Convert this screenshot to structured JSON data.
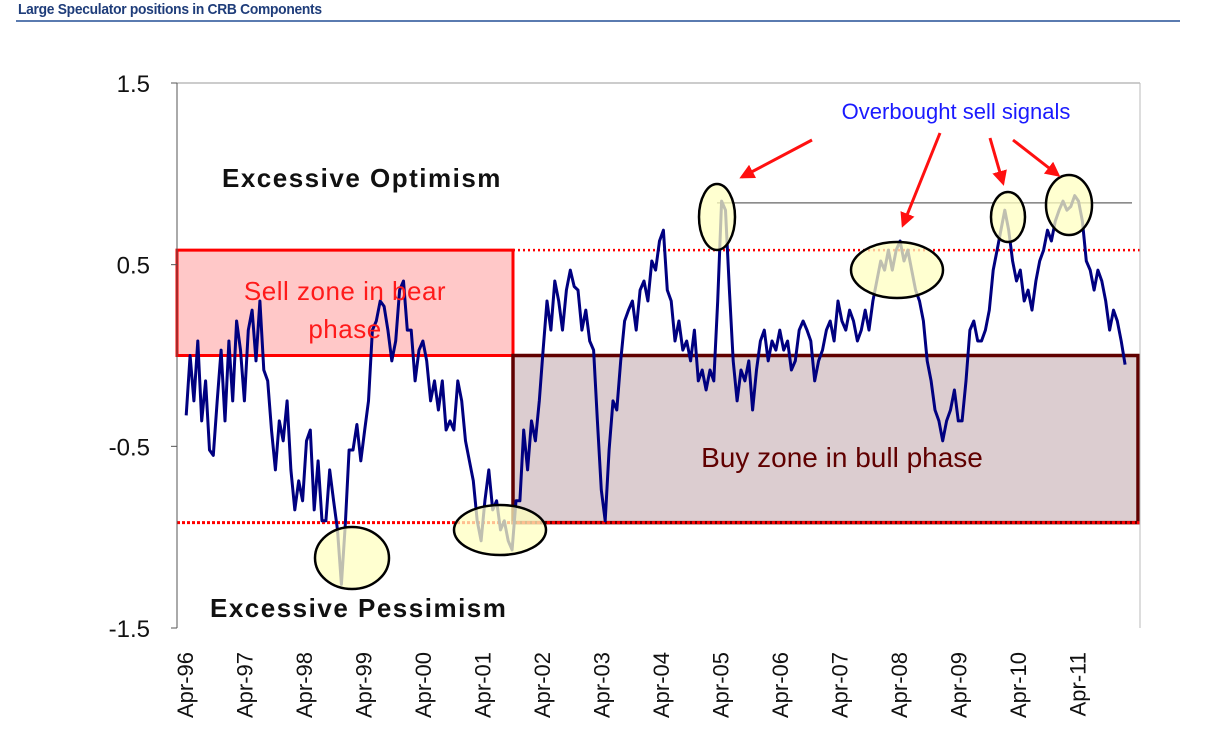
{
  "header": {
    "title": "Large Speculator positions in CRB Components"
  },
  "colors": {
    "line": "#000080",
    "sell_zone": "#ff0000",
    "sell_fill": "#ffc8c8",
    "buy_zone": "#600000",
    "buy_fill": "#dccdd0",
    "highlight": "#ffffc0",
    "annotation": "#1a1aff"
  },
  "chart_data": {
    "type": "line",
    "title": "Large Speculator positions in CRB Components",
    "xlabel": "",
    "ylabel": "",
    "ylim": [
      -1.5,
      1.5
    ],
    "yticks": [
      "1.5",
      "0.5",
      "-0.5",
      "-1.5"
    ],
    "ytick_values": [
      1.5,
      0.5,
      -0.5,
      -1.5
    ],
    "xticks": [
      "Apr-96",
      "Apr-97",
      "Apr-98",
      "Apr-99",
      "Apr-00",
      "Apr-01",
      "Apr-02",
      "Apr-03",
      "Apr-04",
      "Apr-05",
      "Apr-06",
      "Apr-07",
      "Apr-08",
      "Apr-09",
      "Apr-10",
      "Apr-11"
    ],
    "xtick_values": [
      1996.25,
      1997.25,
      1998.25,
      1999.25,
      2000.25,
      2001.25,
      2002.25,
      2003.25,
      2004.25,
      2005.25,
      2006.25,
      2007.25,
      2008.25,
      2009.25,
      2010.25,
      2011.25
    ],
    "series": [
      {
        "name": "Large speculator positions",
        "x_start": 1996.27,
        "x_end": 2012.05,
        "values": [
          -0.33,
          0.0,
          -0.25,
          0.08,
          -0.36,
          -0.14,
          -0.52,
          -0.55,
          -0.25,
          0.03,
          -0.36,
          0.08,
          -0.25,
          0.19,
          0.03,
          -0.25,
          0.14,
          0.25,
          -0.03,
          0.3,
          -0.08,
          -0.14,
          -0.41,
          -0.63,
          -0.36,
          -0.47,
          -0.25,
          -0.63,
          -0.85,
          -0.69,
          -0.8,
          -0.47,
          -0.41,
          -0.85,
          -0.58,
          -0.91,
          -0.91,
          -0.63,
          -0.8,
          -0.96,
          -1.26,
          -0.93,
          -0.52,
          -0.52,
          -0.38,
          -0.58,
          -0.41,
          -0.25,
          0.14,
          0.19,
          0.3,
          0.27,
          0.14,
          -0.03,
          0.08,
          0.36,
          0.41,
          0.14,
          0.14,
          -0.14,
          0.03,
          0.08,
          -0.03,
          -0.25,
          -0.14,
          -0.3,
          -0.14,
          -0.41,
          -0.36,
          -0.41,
          -0.14,
          -0.25,
          -0.47,
          -0.58,
          -0.69,
          -0.91,
          -1.02,
          -0.8,
          -0.63,
          -0.85,
          -0.8,
          -0.96,
          -0.91,
          -1.02,
          -1.07,
          -0.8,
          -0.8,
          -0.41,
          -0.63,
          -0.36,
          -0.47,
          -0.25,
          0.03,
          0.3,
          0.14,
          0.41,
          0.3,
          0.14,
          0.36,
          0.47,
          0.38,
          0.36,
          0.14,
          0.25,
          0.08,
          0.03,
          -0.36,
          -0.74,
          -0.91,
          -0.52,
          -0.25,
          -0.3,
          -0.03,
          0.19,
          0.25,
          0.3,
          0.14,
          0.36,
          0.41,
          0.3,
          0.52,
          0.47,
          0.63,
          0.69,
          0.36,
          0.3,
          0.08,
          0.19,
          0.03,
          0.08,
          -0.03,
          0.14,
          -0.14,
          -0.08,
          -0.19,
          -0.08,
          -0.14,
          0.3,
          0.85,
          0.8,
          0.36,
          -0.03,
          -0.25,
          -0.08,
          -0.14,
          -0.03,
          -0.3,
          -0.08,
          0.08,
          0.14,
          -0.03,
          0.08,
          0.03,
          0.14,
          0.03,
          0.08,
          -0.08,
          -0.03,
          0.14,
          0.19,
          0.14,
          0.08,
          -0.14,
          -0.03,
          0.03,
          0.14,
          0.19,
          0.08,
          0.3,
          0.19,
          0.14,
          0.25,
          0.19,
          0.08,
          0.14,
          0.25,
          0.14,
          0.3,
          0.41,
          0.52,
          0.47,
          0.58,
          0.47,
          0.58,
          0.63,
          0.52,
          0.58,
          0.47,
          0.36,
          0.3,
          0.19,
          -0.03,
          -0.14,
          -0.3,
          -0.36,
          -0.47,
          -0.36,
          -0.3,
          -0.19,
          -0.36,
          -0.36,
          -0.14,
          0.14,
          0.19,
          0.08,
          0.08,
          0.14,
          0.25,
          0.47,
          0.58,
          0.69,
          0.8,
          0.69,
          0.52,
          0.41,
          0.47,
          0.3,
          0.36,
          0.25,
          0.41,
          0.52,
          0.58,
          0.69,
          0.63,
          0.74,
          0.8,
          0.85,
          0.8,
          0.82,
          0.88,
          0.85,
          0.74,
          0.52,
          0.47,
          0.36,
          0.47,
          0.41,
          0.3,
          0.14,
          0.25,
          0.19,
          0.08,
          -0.05
        ]
      }
    ],
    "reference_lines": {
      "overbought": 0.58,
      "oversold": -0.92,
      "signal_level": 0.84,
      "zero": 0.0
    },
    "annotations": {
      "excessive_optimism": "Excessive Optimism",
      "excessive_pessimism": "Excessive Pessimism",
      "sell_zone_line1": "Sell zone in bear",
      "sell_zone_line2": "phase",
      "buy_zone": "Buy zone in bull phase",
      "overbought": "Overbought sell signals"
    },
    "grid": false,
    "legend": "none"
  }
}
